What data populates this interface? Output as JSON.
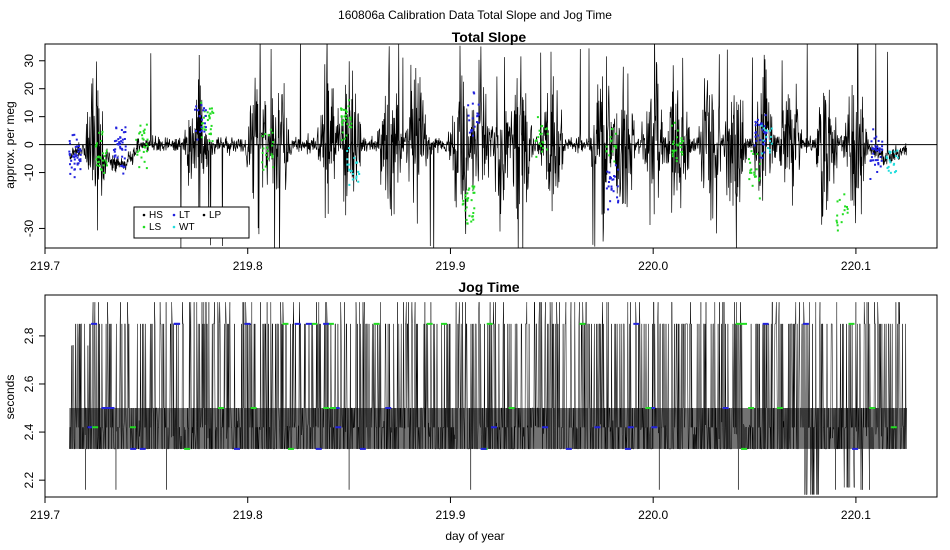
{
  "figure": {
    "title": "160806a   Calibration Data Total Slope and Jog Time",
    "xlabel": "day of year"
  },
  "chart_data": [
    {
      "type": "line",
      "title": "Total Slope",
      "xlabel": "",
      "ylabel": "approx. per meg",
      "xlim": [
        219.7,
        220.14
      ],
      "ylim": [
        -37,
        36
      ],
      "x_ticks": [
        "219.7",
        "219.8",
        "219.9",
        "220.0",
        "220.1"
      ],
      "y_ticks": [
        "-30",
        "-10",
        "0",
        "10",
        "20",
        "30"
      ],
      "y_tick_values": [
        -30,
        -10,
        0,
        10,
        20,
        30
      ],
      "reference_line_y": 0,
      "x_range_of_data": [
        219.712,
        220.125
      ],
      "legend": {
        "position": "bottom-left",
        "entries": [
          "HS",
          "LS",
          "LT",
          "WT",
          "LP"
        ]
      },
      "series": [
        {
          "name": "HS",
          "color": "#000000"
        },
        {
          "name": "LS",
          "color": "#22dd22"
        },
        {
          "name": "LT",
          "color": "#2222dd"
        },
        {
          "name": "WT",
          "color": "#22dddd"
        },
        {
          "name": "LP",
          "color": "#000000"
        }
      ]
    },
    {
      "type": "line",
      "title": "Jog Time",
      "xlabel": "day of year",
      "ylabel": "seconds",
      "xlim": [
        219.7,
        220.14
      ],
      "ylim": [
        2.13,
        2.97
      ],
      "x_ticks": [
        "219.7",
        "219.8",
        "219.9",
        "220.0",
        "220.1"
      ],
      "y_ticks": [
        "2.2",
        "2.4",
        "2.6",
        "2.8"
      ],
      "y_tick_values": [
        2.2,
        2.4,
        2.6,
        2.8
      ],
      "x_range_of_data": [
        219.712,
        220.125
      ],
      "levels": [
        2.33,
        2.42,
        2.5,
        2.76,
        2.85,
        2.94
      ]
    }
  ]
}
